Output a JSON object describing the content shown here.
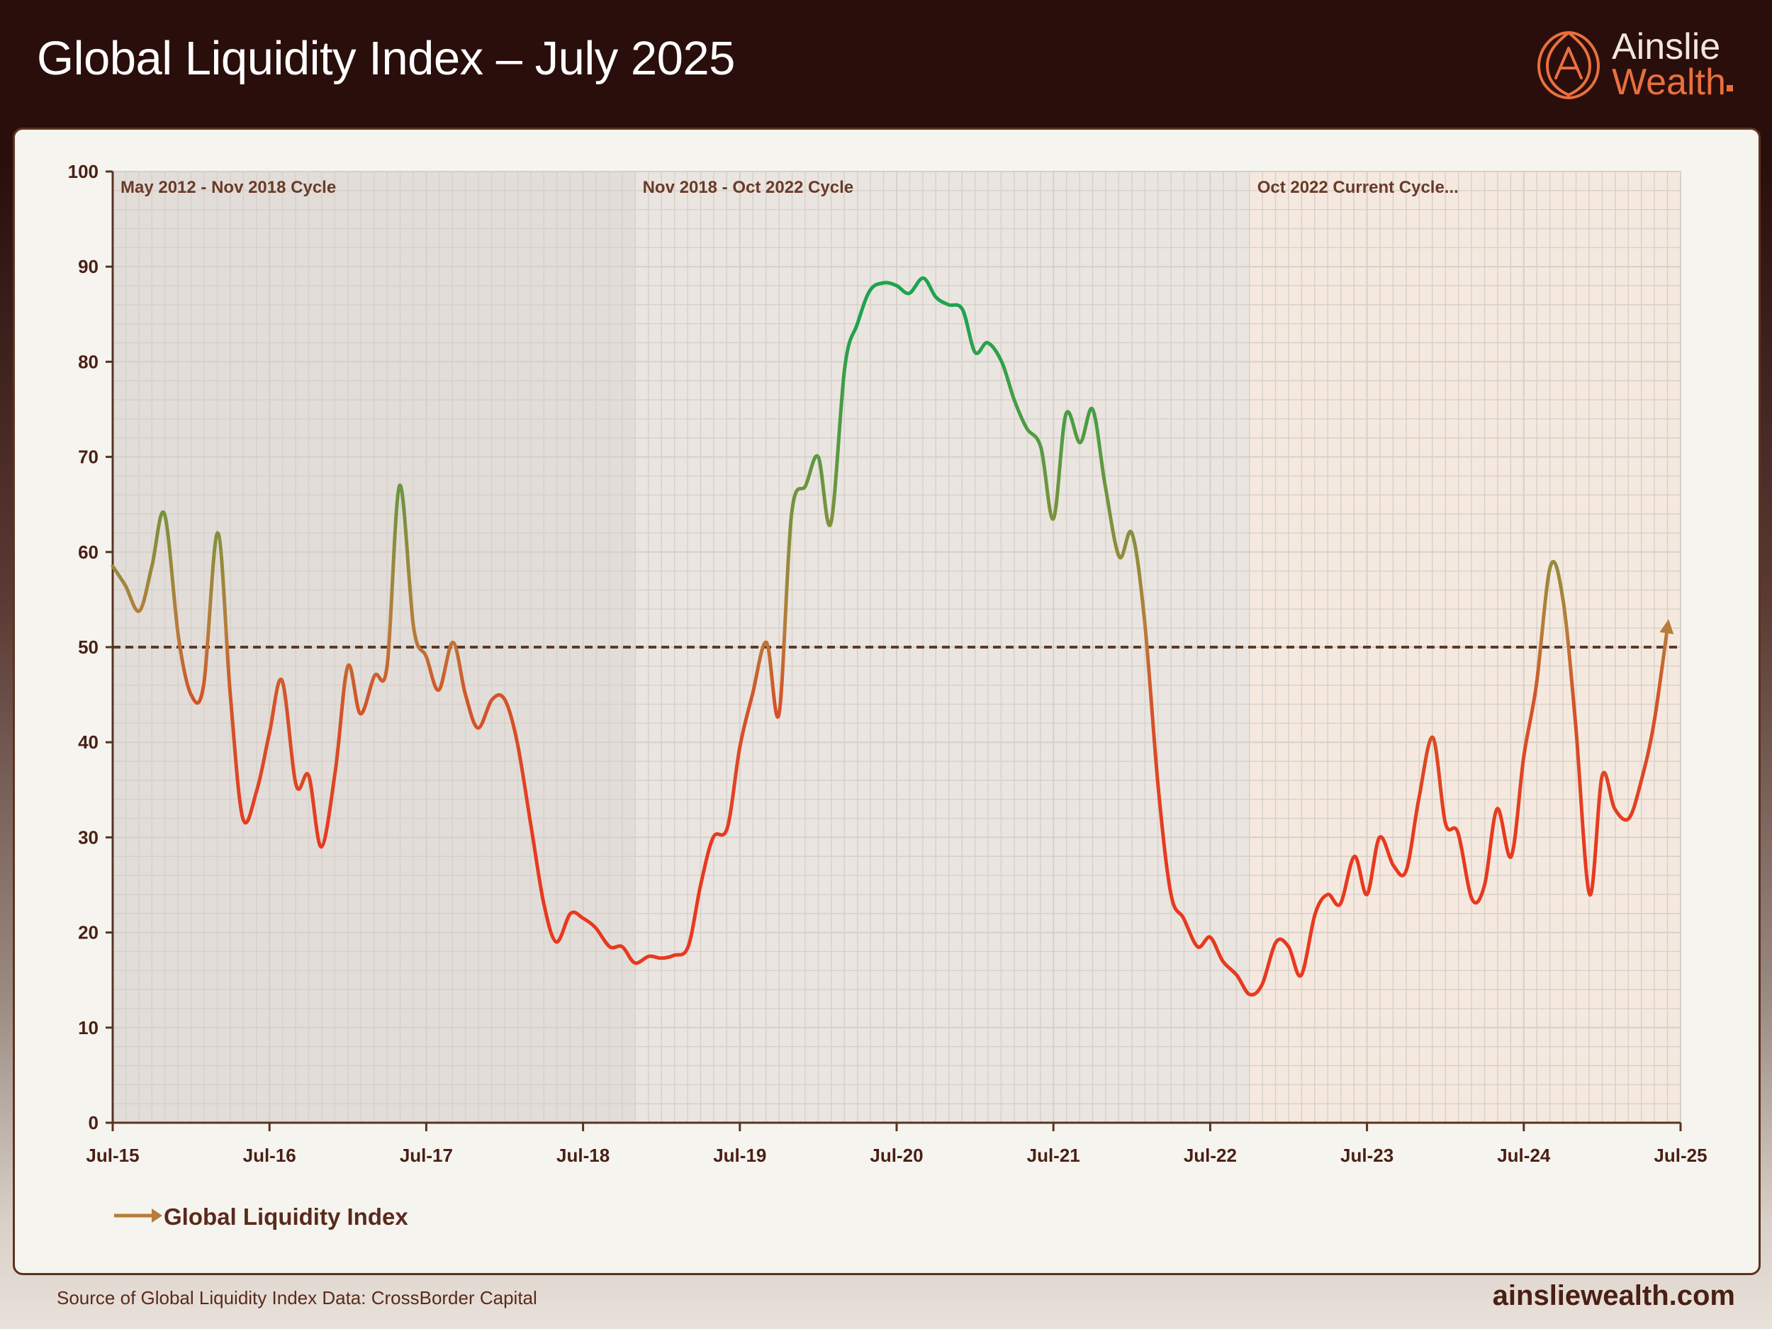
{
  "header": {
    "title": "Global Liquidity Index – July 2025",
    "logo_line1": "Ainslie",
    "logo_line2": "Wealth"
  },
  "footer": {
    "source": "Source of Global Liquidity Index Data: CrossBorder Capital",
    "site": "ainsliewealth.com"
  },
  "colors": {
    "header_bg": "#2a0e0b",
    "accent_orange": "#e8703e",
    "low": "#e8391f",
    "mid": "#b87d3a",
    "high": "#1fa34f",
    "threshold_line": "#5b3a2a"
  },
  "chart_data": {
    "type": "line",
    "ylim": [
      0,
      100
    ],
    "yticks": [
      0,
      10,
      20,
      30,
      40,
      50,
      60,
      70,
      80,
      90,
      100
    ],
    "xlim": [
      2015.5,
      2025.5
    ],
    "xticks": [
      {
        "x": 2015.5,
        "label": "Jul-15"
      },
      {
        "x": 2016.5,
        "label": "Jul-16"
      },
      {
        "x": 2017.5,
        "label": "Jul-17"
      },
      {
        "x": 2018.5,
        "label": "Jul-18"
      },
      {
        "x": 2019.5,
        "label": "Jul-19"
      },
      {
        "x": 2020.5,
        "label": "Jul-20"
      },
      {
        "x": 2021.5,
        "label": "Jul-21"
      },
      {
        "x": 2022.5,
        "label": "Jul-22"
      },
      {
        "x": 2023.5,
        "label": "Jul-23"
      },
      {
        "x": 2024.5,
        "label": "Jul-24"
      },
      {
        "x": 2025.5,
        "label": "Jul-25"
      }
    ],
    "reference_line": 50,
    "cycles": [
      {
        "label": "May 2012 - Nov 2018 Cycle",
        "start": 2015.5,
        "end": 2018.83
      },
      {
        "label": "Nov 2018 - Oct 2022 Cycle",
        "start": 2018.83,
        "end": 2022.75
      },
      {
        "label": "Oct 2022 Current Cycle...",
        "start": 2022.75,
        "end": 2025.5
      }
    ],
    "legend": {
      "label": "Global Liquidity Index",
      "position": "bottom-left"
    },
    "grid": true,
    "series": [
      {
        "name": "Global Liquidity Index",
        "points": [
          [
            2015.5,
            58.5
          ],
          [
            2015.58,
            56.5
          ],
          [
            2015.67,
            53.8
          ],
          [
            2015.75,
            58.5
          ],
          [
            2015.83,
            64.0
          ],
          [
            2015.92,
            51.0
          ],
          [
            2016.0,
            45.0
          ],
          [
            2016.08,
            46.0
          ],
          [
            2016.17,
            62.0
          ],
          [
            2016.25,
            45.0
          ],
          [
            2016.33,
            32.0
          ],
          [
            2016.42,
            35.0
          ],
          [
            2016.5,
            41.0
          ],
          [
            2016.58,
            46.5
          ],
          [
            2016.67,
            35.5
          ],
          [
            2016.75,
            36.5
          ],
          [
            2016.83,
            29.0
          ],
          [
            2016.92,
            37.0
          ],
          [
            2017.0,
            48.0
          ],
          [
            2017.08,
            43.0
          ],
          [
            2017.17,
            47.0
          ],
          [
            2017.25,
            48.0
          ],
          [
            2017.33,
            67.0
          ],
          [
            2017.42,
            52.0
          ],
          [
            2017.5,
            49.0
          ],
          [
            2017.58,
            45.5
          ],
          [
            2017.67,
            50.5
          ],
          [
            2017.75,
            45.0
          ],
          [
            2017.83,
            41.5
          ],
          [
            2017.92,
            44.5
          ],
          [
            2018.0,
            44.5
          ],
          [
            2018.08,
            40.0
          ],
          [
            2018.17,
            31.0
          ],
          [
            2018.25,
            23.0
          ],
          [
            2018.33,
            19.0
          ],
          [
            2018.42,
            22.0
          ],
          [
            2018.5,
            21.5
          ],
          [
            2018.58,
            20.5
          ],
          [
            2018.67,
            18.5
          ],
          [
            2018.75,
            18.5
          ],
          [
            2018.83,
            16.8
          ],
          [
            2018.92,
            17.5
          ],
          [
            2019.0,
            17.3
          ],
          [
            2019.08,
            17.6
          ],
          [
            2019.17,
            18.5
          ],
          [
            2019.25,
            25.0
          ],
          [
            2019.33,
            30.0
          ],
          [
            2019.42,
            31.0
          ],
          [
            2019.5,
            39.5
          ],
          [
            2019.58,
            45.0
          ],
          [
            2019.67,
            50.5
          ],
          [
            2019.75,
            43.0
          ],
          [
            2019.83,
            64.0
          ],
          [
            2019.92,
            67.0
          ],
          [
            2020.0,
            70.0
          ],
          [
            2020.08,
            63.0
          ],
          [
            2020.17,
            79.5
          ],
          [
            2020.25,
            84.0
          ],
          [
            2020.33,
            87.5
          ],
          [
            2020.42,
            88.3
          ],
          [
            2020.5,
            88.0
          ],
          [
            2020.58,
            87.2
          ],
          [
            2020.67,
            88.8
          ],
          [
            2020.75,
            86.8
          ],
          [
            2020.83,
            86.0
          ],
          [
            2020.92,
            85.5
          ],
          [
            2021.0,
            81.0
          ],
          [
            2021.08,
            82.0
          ],
          [
            2021.17,
            80.0
          ],
          [
            2021.25,
            76.0
          ],
          [
            2021.33,
            73.0
          ],
          [
            2021.42,
            71.0
          ],
          [
            2021.5,
            63.5
          ],
          [
            2021.58,
            74.5
          ],
          [
            2021.67,
            71.5
          ],
          [
            2021.75,
            75.0
          ],
          [
            2021.83,
            67.0
          ],
          [
            2021.92,
            59.5
          ],
          [
            2022.0,
            62.0
          ],
          [
            2022.08,
            53.0
          ],
          [
            2022.17,
            35.0
          ],
          [
            2022.25,
            24.0
          ],
          [
            2022.33,
            21.5
          ],
          [
            2022.42,
            18.5
          ],
          [
            2022.5,
            19.5
          ],
          [
            2022.58,
            17.0
          ],
          [
            2022.67,
            15.5
          ],
          [
            2022.75,
            13.5
          ],
          [
            2022.83,
            14.5
          ],
          [
            2022.92,
            19.0
          ],
          [
            2023.0,
            18.5
          ],
          [
            2023.08,
            15.5
          ],
          [
            2023.17,
            22.0
          ],
          [
            2023.25,
            24.0
          ],
          [
            2023.33,
            23.0
          ],
          [
            2023.42,
            28.0
          ],
          [
            2023.5,
            24.0
          ],
          [
            2023.58,
            30.0
          ],
          [
            2023.67,
            27.0
          ],
          [
            2023.75,
            26.5
          ],
          [
            2023.83,
            34.0
          ],
          [
            2023.92,
            40.5
          ],
          [
            2024.0,
            31.5
          ],
          [
            2024.08,
            30.5
          ],
          [
            2024.17,
            23.5
          ],
          [
            2024.25,
            25.0
          ],
          [
            2024.33,
            33.0
          ],
          [
            2024.42,
            28.0
          ],
          [
            2024.5,
            38.5
          ],
          [
            2024.58,
            46.0
          ],
          [
            2024.67,
            58.5
          ],
          [
            2024.75,
            55.0
          ],
          [
            2024.83,
            42.0
          ],
          [
            2024.92,
            24.0
          ],
          [
            2025.0,
            36.5
          ],
          [
            2025.08,
            33.0
          ],
          [
            2025.17,
            32.0
          ],
          [
            2025.25,
            36.0
          ],
          [
            2025.33,
            42.0
          ],
          [
            2025.42,
            52.5
          ]
        ]
      }
    ]
  }
}
